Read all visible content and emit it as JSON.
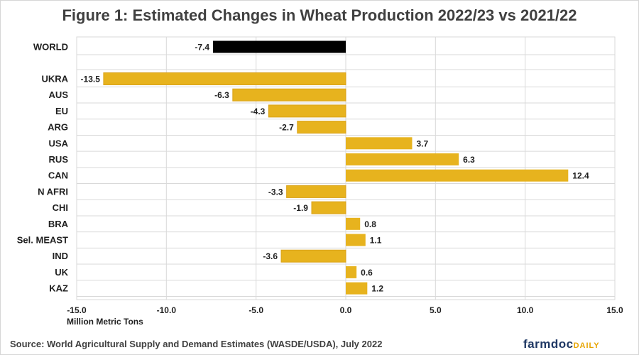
{
  "title": "Figure 1: Estimated Changes in Wheat Production 2022/23 vs 2021/22",
  "source": "Source: World Agricultural Supply and Demand Estimates (WASDE/USDA), July 2022",
  "logo": {
    "main": "farmdoc",
    "sub": "DAILY"
  },
  "colors": {
    "world_bar": "#000000",
    "country_bar": "#e7b31e",
    "gridline": "#d9d9d9",
    "title": "#404040"
  },
  "chart_data": {
    "type": "bar",
    "orientation": "horizontal",
    "title": "Figure 1: Estimated Changes in Wheat Production 2022/23 vs 2021/22",
    "xlabel": "Million Metric Tons",
    "ylabel": "",
    "xlim": [
      -15,
      15
    ],
    "xticks": [
      -15,
      -10,
      -5,
      0,
      5,
      10,
      15
    ],
    "xtick_labels": [
      "-15.0",
      "-10.0",
      "-5.0",
      "0.0",
      "5.0",
      "10.0",
      "15.0"
    ],
    "grid": true,
    "categories": [
      "WORLD",
      "UKRA",
      "AUS",
      "EU",
      "ARG",
      "USA",
      "RUS",
      "CAN",
      "N AFRI",
      "CHI",
      "BRA",
      "Sel. MEAST",
      "IND",
      "UK",
      "KAZ"
    ],
    "values": [
      -7.4,
      -13.5,
      -6.3,
      -4.3,
      -2.7,
      3.7,
      6.3,
      12.4,
      -3.3,
      -1.9,
      0.8,
      1.1,
      -3.6,
      0.6,
      1.2
    ],
    "value_labels": [
      "-7.4",
      "-13.5",
      "-6.3",
      "-4.3",
      "-2.7",
      "3.7",
      "6.3",
      "12.4",
      "-3.3",
      "-1.9",
      "0.8",
      "1.1",
      "-3.6",
      "0.6",
      "1.2"
    ],
    "bar_colors": [
      "#000000",
      "#e7b31e",
      "#e7b31e",
      "#e7b31e",
      "#e7b31e",
      "#e7b31e",
      "#e7b31e",
      "#e7b31e",
      "#e7b31e",
      "#e7b31e",
      "#e7b31e",
      "#e7b31e",
      "#e7b31e",
      "#e7b31e",
      "#e7b31e"
    ]
  }
}
